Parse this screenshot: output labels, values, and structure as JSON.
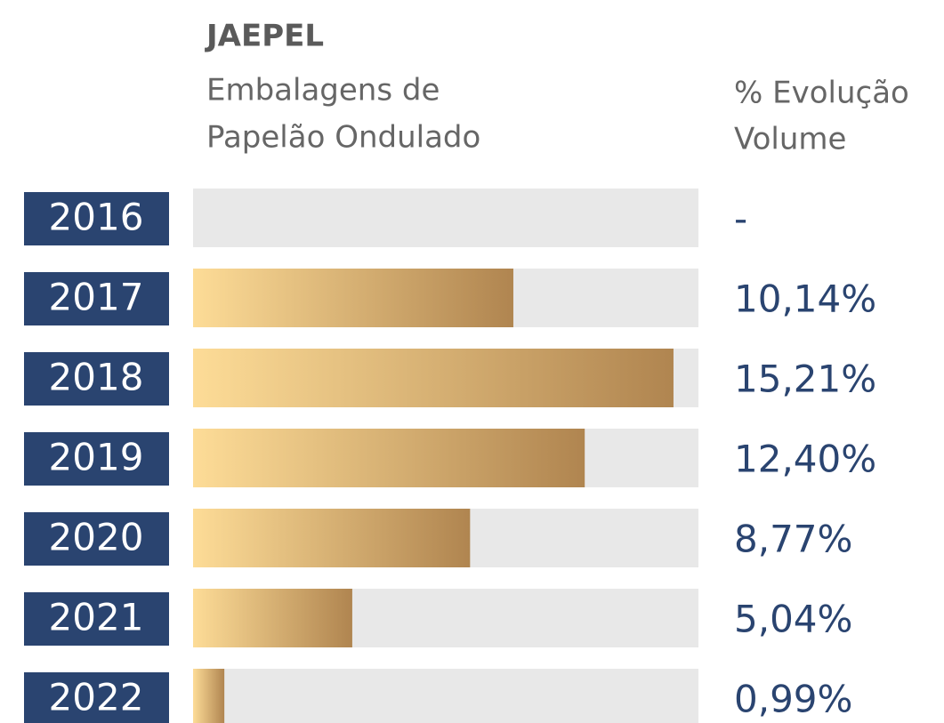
{
  "chart_data": {
    "type": "bar",
    "orientation": "horizontal",
    "title": "JAEPEL",
    "subtitle": [
      "Embalagens de",
      "Papelão Ondulado"
    ],
    "value_header": [
      "% Evolução",
      "Volume"
    ],
    "categories": [
      "2016",
      "2017",
      "2018",
      "2019",
      "2020",
      "2021",
      "2022"
    ],
    "values": [
      null,
      10.14,
      15.21,
      12.4,
      8.77,
      5.04,
      0.99
    ],
    "value_labels": [
      "-",
      "10,14%",
      "15,21%",
      "12,40%",
      "8,77%",
      "5,04%",
      "0,99%"
    ],
    "xlim": [
      0,
      16
    ],
    "color": [
      "#fddc97",
      "#b08550"
    ],
    "category_color": "#2a4470"
  }
}
